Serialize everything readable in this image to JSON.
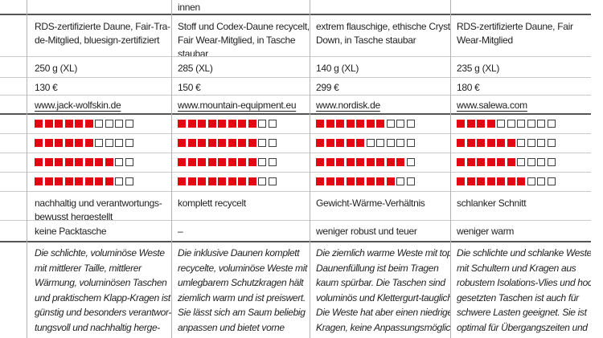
{
  "meta": {
    "accent_red": "#e30613",
    "rating_scale": 10
  },
  "columns": [
    {
      "id": "jack-wolfskin",
      "top_fragment": "",
      "features": "RDS-zertifizierte Daune, Fair-Tra-\nde-Mitglied, bluesign-zertifiziert",
      "weight": "250 g (XL)",
      "price": "130 €",
      "website": "www.jack-wolfskin.de",
      "ratings": [
        6,
        6,
        8,
        8
      ],
      "pro": "nachhaltig und verantwortungs-\nbewusst hergestellt",
      "con": "keine Packtasche",
      "verdict": "Die schlichte, voluminöse Weste\nmit mittlerer Taille, mittlerer\nWärmung, voluminösen Taschen\nund praktischem Klapp-Kragen ist\ngünstig und besonders verantwor-\ntungsvoll und nachhaltig herge-\nstellt."
    },
    {
      "id": "mountain-equipment",
      "top_fragment": "innen",
      "features": "Stoff und Codex-Daune recycelt,\nFair Wear-Mitglied, in Tasche\nstaubar",
      "weight": "285 (XL)",
      "price": "150 €",
      "website": "www.mountain-equipment.eu",
      "ratings": [
        8,
        8,
        8,
        8
      ],
      "pro": "komplett recycelt",
      "con": "–",
      "verdict": "Die inklusive Daunen komplett\nrecycelte, voluminöse Weste mit\numlegbarem Schutzkragen hält\nziemlich warm und ist preiswert.\nSie lässt sich am Saum beliebig\nanpassen und bietet vorne\nzusätzlichen Windschutz. Optimal\nfür windige Bedingungen"
    },
    {
      "id": "nordisk",
      "top_fragment": "",
      "features": "extrem flauschige, ethische Crystal\nDown, in Tasche staubar",
      "weight": "140 g (XL)",
      "price": "299 €",
      "website": "www.nordisk.de",
      "ratings": [
        7,
        5,
        9,
        8
      ],
      "pro": "Gewicht-Wärme-Verhältnis",
      "con": "weniger robust und teuer",
      "verdict": "Die ziemlich warme Weste mit top\nDaunenfüllung ist beim Tragen\nkaum spürbar. Die Taschen sind\nvoluminös und Klettergurt-tauglich.\nDie Weste hat aber einen niedrigen\nKragen, keine Anpassungsmöglich-\nkeit und einen hohen Preis. Perfekt\nfür Gewichtsoptimierer"
    },
    {
      "id": "salewa",
      "top_fragment": "",
      "features": "RDS-zertifizierte Daune, Fair\nWear-Mitglied",
      "weight": "235 g (XL)",
      "price": "180 €",
      "website": "www.salewa.com",
      "ratings": [
        4,
        6,
        6,
        7
      ],
      "pro": "schlanker Schnitt",
      "con": "weniger warm",
      "verdict": "Die schlichte und schlanke Weste\nmit Schultern und Kragen aus\nrobustem Isolations-Vlies und hoch-\ngesetzten Taschen ist auch für\nschwere Lasten geeignet. Sie ist\noptimal für Übergangszeiten und\nSommerabende geeignet."
    }
  ]
}
